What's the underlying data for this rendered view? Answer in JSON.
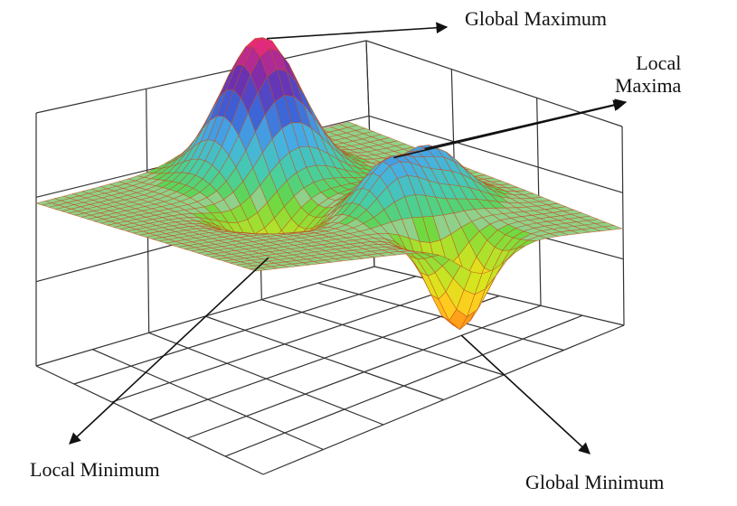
{
  "labels": {
    "global_maximum": "Global Maximum",
    "local_maxima_line1": "Local",
    "local_maxima_line2": "Maxima",
    "local_minimum": "Local Minimum",
    "global_minimum": "Global Minimum"
  },
  "colors": {
    "mesh_line": "#c0501e",
    "frame_line": "#333333",
    "arrow": "#111111",
    "flat_surface": "#8fd18a"
  }
}
